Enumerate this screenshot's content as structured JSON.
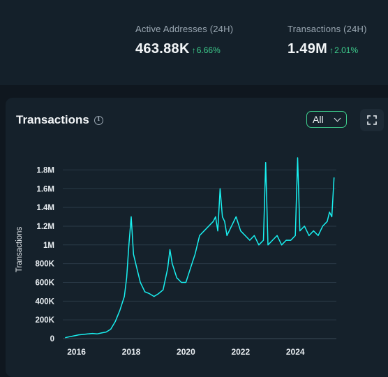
{
  "stats": [
    {
      "label": "Active Addresses (24H)",
      "value": "463.88K",
      "change": "6.66%"
    },
    {
      "label": "Transactions (24H)",
      "value": "1.49M",
      "change": "2.01%"
    }
  ],
  "colors": {
    "accent": "#3ecf8e",
    "line": "#19f0f0",
    "grid": "#2a3a47",
    "background": "#0f171f",
    "card": "#15212b"
  },
  "icons": {
    "info": "info-circle-icon",
    "range_chevron": "chevron-down-icon",
    "expand": "fullscreen-icon"
  },
  "card": {
    "title": "Transactions",
    "range": "All"
  },
  "chart_data": {
    "type": "line",
    "title": "Transactions",
    "ylabel": "Transactions",
    "xlabel": "",
    "ylim": [
      0,
      1900000
    ],
    "xlim": [
      "2015-07",
      "2025-07"
    ],
    "grid": true,
    "y_ticks": [
      "0",
      "200K",
      "400K",
      "600K",
      "800K",
      "1M",
      "1.2M",
      "1.4M",
      "1.6M",
      "1.8M"
    ],
    "y_tick_values": [
      0,
      200000,
      400000,
      600000,
      800000,
      1000000,
      1200000,
      1400000,
      1600000,
      1800000
    ],
    "x_ticks": [
      "2016",
      "2018",
      "2020",
      "2022",
      "2024"
    ],
    "x_tick_values": [
      "2016-01",
      "2018-01",
      "2020-01",
      "2022-01",
      "2024-01"
    ],
    "series": [
      {
        "x": [
          "2015-08",
          "2015-10",
          "2015-12",
          "2016-02",
          "2016-04",
          "2016-06",
          "2016-08",
          "2016-10",
          "2016-12",
          "2017-02",
          "2017-04",
          "2017-06",
          "2017-08",
          "2017-10",
          "2017-11",
          "2017-12",
          "2018-01",
          "2018-02",
          "2018-03",
          "2018-04",
          "2018-05",
          "2018-07",
          "2018-09",
          "2018-11",
          "2019-01",
          "2019-03",
          "2019-05",
          "2019-06",
          "2019-07",
          "2019-09",
          "2019-11",
          "2020-01",
          "2020-03",
          "2020-05",
          "2020-07",
          "2020-09",
          "2020-11",
          "2021-01",
          "2021-02",
          "2021-03",
          "2021-04",
          "2021-05",
          "2021-06",
          "2021-07",
          "2021-09",
          "2021-11",
          "2022-01",
          "2022-03",
          "2022-05",
          "2022-07",
          "2022-09",
          "2022-11",
          "2022-12",
          "2023-01",
          "2023-03",
          "2023-05",
          "2023-07",
          "2023-09",
          "2023-11",
          "2024-01",
          "2024-02",
          "2024-03",
          "2024-05",
          "2024-07",
          "2024-09",
          "2024-11",
          "2025-01",
          "2025-03",
          "2025-04",
          "2025-05",
          "2025-06"
        ],
        "values": [
          10000,
          20000,
          30000,
          40000,
          45000,
          50000,
          55000,
          50000,
          60000,
          70000,
          100000,
          180000,
          300000,
          450000,
          650000,
          1000000,
          1300000,
          900000,
          800000,
          700000,
          600000,
          500000,
          480000,
          450000,
          480000,
          520000,
          750000,
          950000,
          800000,
          650000,
          600000,
          600000,
          750000,
          900000,
          1100000,
          1150000,
          1200000,
          1250000,
          1300000,
          1150000,
          1600000,
          1300000,
          1250000,
          1100000,
          1200000,
          1300000,
          1150000,
          1100000,
          1050000,
          1100000,
          1000000,
          1050000,
          1880000,
          1000000,
          1050000,
          1100000,
          1000000,
          1050000,
          1050000,
          1100000,
          1930000,
          1150000,
          1200000,
          1100000,
          1150000,
          1100000,
          1200000,
          1250000,
          1350000,
          1300000,
          1720000
        ]
      }
    ]
  }
}
